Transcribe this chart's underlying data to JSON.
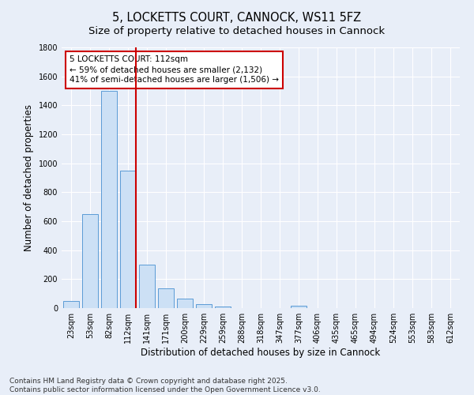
{
  "title": "5, LOCKETTS COURT, CANNOCK, WS11 5FZ",
  "subtitle": "Size of property relative to detached houses in Cannock",
  "xlabel": "Distribution of detached houses by size in Cannock",
  "ylabel": "Number of detached properties",
  "bin_labels": [
    "23sqm",
    "53sqm",
    "82sqm",
    "112sqm",
    "141sqm",
    "171sqm",
    "200sqm",
    "229sqm",
    "259sqm",
    "288sqm",
    "318sqm",
    "347sqm",
    "377sqm",
    "406sqm",
    "435sqm",
    "465sqm",
    "494sqm",
    "524sqm",
    "553sqm",
    "583sqm",
    "612sqm"
  ],
  "bar_heights": [
    50,
    650,
    1500,
    950,
    300,
    135,
    65,
    25,
    10,
    0,
    0,
    0,
    15,
    0,
    0,
    0,
    0,
    0,
    0,
    0,
    0
  ],
  "bar_color": "#cce0f5",
  "bar_edge_color": "#5b9bd5",
  "red_line_index": 3,
  "red_line_color": "#cc0000",
  "annotation_line1": "5 LOCKETTS COURT: 112sqm",
  "annotation_line2": "← 59% of detached houses are smaller (2,132)",
  "annotation_line3": "41% of semi-detached houses are larger (1,506) →",
  "annotation_box_color": "#ffffff",
  "annotation_box_edge_color": "#cc0000",
  "ylim": [
    0,
    1800
  ],
  "yticks": [
    0,
    200,
    400,
    600,
    800,
    1000,
    1200,
    1400,
    1600,
    1800
  ],
  "footer_line1": "Contains HM Land Registry data © Crown copyright and database right 2025.",
  "footer_line2": "Contains public sector information licensed under the Open Government Licence v3.0.",
  "bg_color": "#e8eef8",
  "grid_color": "#ffffff",
  "title_fontsize": 10.5,
  "subtitle_fontsize": 9.5,
  "axis_label_fontsize": 8.5,
  "tick_fontsize": 7,
  "annotation_fontsize": 7.5,
  "footer_fontsize": 6.5
}
